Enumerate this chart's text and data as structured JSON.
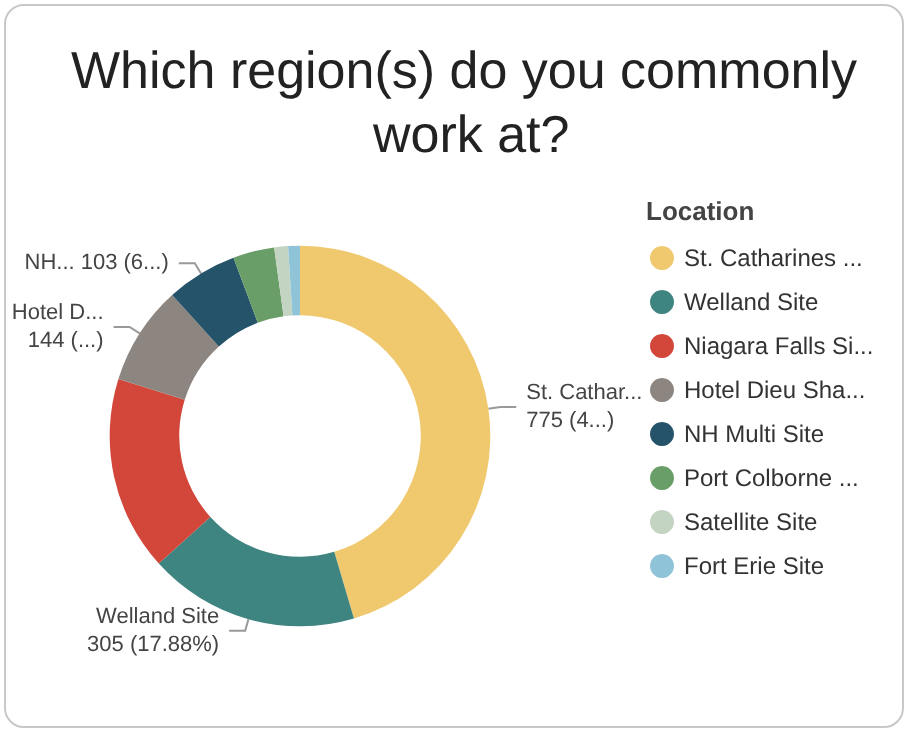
{
  "chart_data": {
    "type": "donut",
    "title": "Which region(s) do you commonly work at?",
    "legend_title": "Location",
    "legend": "right",
    "categories": [
      "St. Catharines ...",
      "Welland Site",
      "Niagara Falls Si...",
      "Hotel Dieu Sha...",
      "NH Multi Site",
      "Port Colborne ...",
      "Satellite Site",
      "Fort Erie Site"
    ],
    "values": [
      775,
      305,
      282,
      144,
      103,
      60,
      20,
      17
    ],
    "colors": [
      "#f0c96e",
      "#3e8480",
      "#d2473a",
      "#8c8580",
      "#24536a",
      "#6a9e68",
      "#c3d4c2",
      "#8fc4d8"
    ],
    "value_labels": [
      "St. Cathar...\n775 (4...)",
      "Welland Site\n305 (17.88%)",
      null,
      "Hotel D...\n144 (...)",
      "NH... 103 (6...)",
      null,
      null,
      null
    ]
  }
}
